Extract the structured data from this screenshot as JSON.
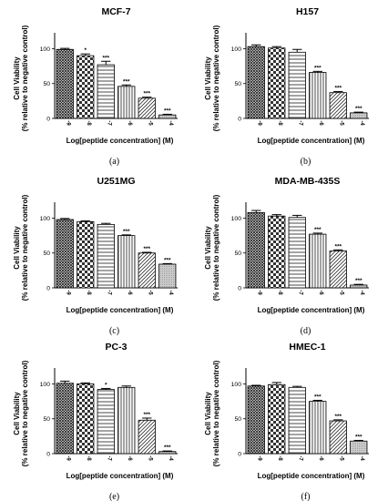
{
  "chart_data": [
    {
      "type": "bar",
      "panel": "(a)",
      "title": "MCF-7",
      "ylabel": "Cell Viability",
      "ylabel2": "(% relative to negative control)",
      "xlabel": "Log[peptide concentration]  (M)",
      "categories": [
        "-9",
        "-8",
        "-7",
        "-6",
        "-5",
        "-4"
      ],
      "values": [
        99,
        90,
        77,
        46,
        29,
        5
      ],
      "errors": [
        1.5,
        2.5,
        5,
        2,
        1.5,
        1
      ],
      "significance": [
        "",
        "*",
        "***",
        "***",
        "***",
        "***"
      ],
      "yticks": [
        0,
        50,
        100
      ],
      "ylim": [
        0,
        115
      ]
    },
    {
      "type": "bar",
      "panel": "(b)",
      "title": "H157",
      "ylabel": "Cell Viability",
      "ylabel2": "(% relative to negative control)",
      "xlabel": "Log[peptide concentration]  (M)",
      "categories": [
        "-9",
        "-8",
        "-7",
        "-6",
        "-5",
        "-4"
      ],
      "values": [
        103,
        101,
        95,
        66,
        37,
        8
      ],
      "errors": [
        2.5,
        2,
        4,
        1.5,
        1.5,
        1
      ],
      "significance": [
        "",
        "",
        "",
        "***",
        "***",
        "***"
      ],
      "yticks": [
        0,
        50,
        100
      ],
      "ylim": [
        0,
        115
      ]
    },
    {
      "type": "bar",
      "panel": "(c)",
      "title": "U251MG",
      "ylabel": "Cell Viability",
      "ylabel2": "(% relative to negative control)",
      "xlabel": "Log[peptide concentration]  (M)",
      "categories": [
        "-9",
        "-8",
        "-7",
        "-6",
        "-5",
        "-4"
      ],
      "values": [
        98,
        95,
        91,
        75,
        50,
        34
      ],
      "errors": [
        1.5,
        1,
        1.5,
        1,
        1,
        0.8
      ],
      "significance": [
        "",
        "",
        "",
        "***",
        "***",
        "***"
      ],
      "yticks": [
        0,
        50,
        100
      ],
      "ylim": [
        0,
        115
      ]
    },
    {
      "type": "bar",
      "panel": "(d)",
      "title": "MDA-MB-435S",
      "ylabel": "Cell Viability",
      "ylabel2": "(% relative to negative control)",
      "xlabel": "Log[peptide concentration]  (M)",
      "categories": [
        "-9",
        "-8",
        "-7",
        "-6",
        "-5",
        "-4"
      ],
      "values": [
        108,
        103,
        101,
        77,
        53,
        4
      ],
      "errors": [
        3,
        2,
        3,
        1.5,
        1.5,
        1
      ],
      "significance": [
        "",
        "",
        "",
        "***",
        "***",
        "***"
      ],
      "yticks": [
        0,
        50,
        100
      ],
      "ylim": [
        0,
        115
      ]
    },
    {
      "type": "bar",
      "panel": "(e)",
      "title": "PC-3",
      "ylabel": "Cell Viability",
      "ylabel2": "(% relative to negative control)",
      "xlabel": "Log[peptide concentration]  (M)",
      "categories": [
        "-9",
        "-8",
        "-7",
        "-6",
        "-5",
        "-4"
      ],
      "values": [
        101,
        100,
        92,
        95,
        48,
        3
      ],
      "errors": [
        3,
        1.5,
        1.5,
        2,
        3,
        0.8
      ],
      "significance": [
        "",
        "",
        "*",
        "",
        "***",
        "***"
      ],
      "yticks": [
        0,
        50,
        100
      ],
      "ylim": [
        0,
        115
      ]
    },
    {
      "type": "bar",
      "panel": "(f)",
      "title": "HMEC-1",
      "ylabel": "Cell Viability",
      "ylabel2": "(% relative to negative control)",
      "xlabel": "Log[peptide concentration]  (M)",
      "categories": [
        "-9",
        "-8",
        "-7",
        "-6",
        "-5",
        "-4"
      ],
      "values": [
        97,
        99,
        95,
        75,
        47,
        18
      ],
      "errors": [
        1,
        3,
        1.5,
        1.5,
        1.5,
        1
      ],
      "significance": [
        "",
        "",
        "",
        "***",
        "***",
        "***"
      ],
      "yticks": [
        0,
        50,
        100
      ],
      "ylim": [
        0,
        115
      ]
    }
  ]
}
